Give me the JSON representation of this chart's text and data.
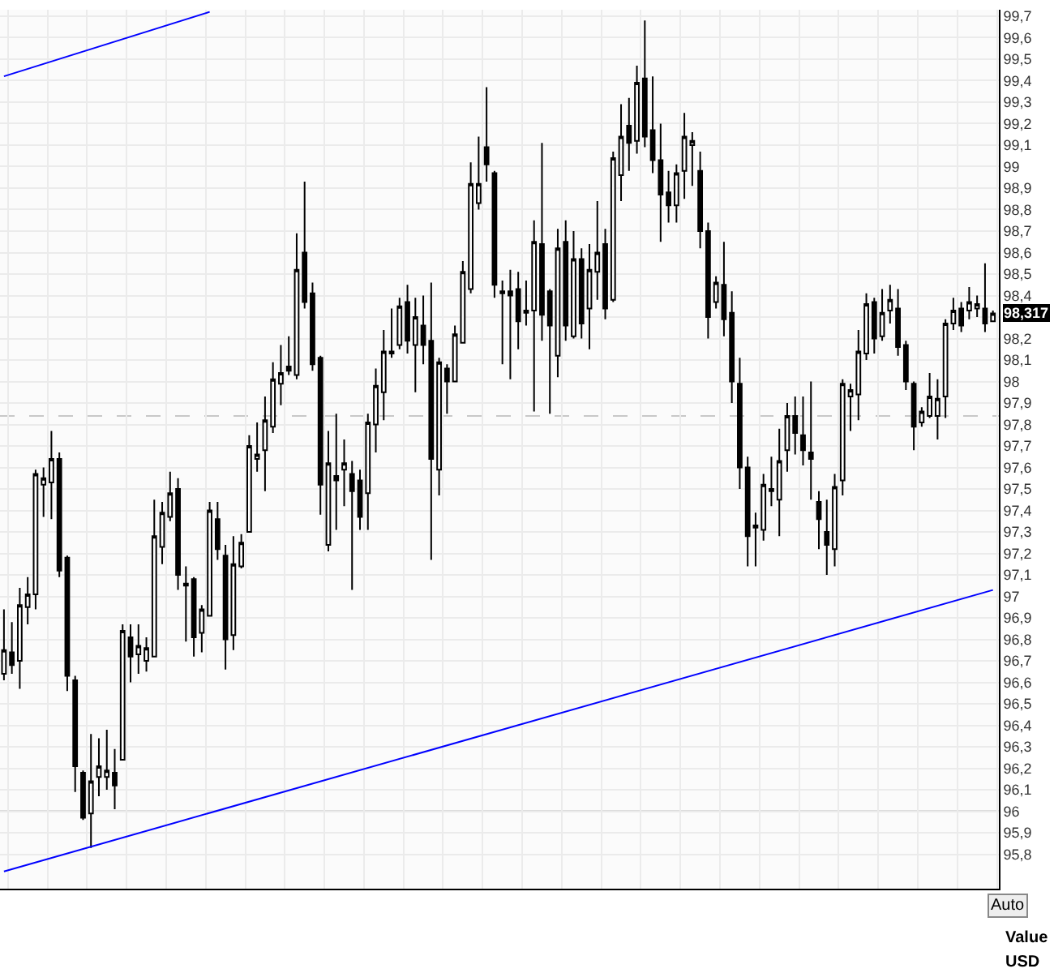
{
  "chart_data": {
    "type": "candlestick",
    "categories": [
      null,
      null,
      null,
      null,
      null,
      null,
      null,
      null,
      null,
      null,
      null,
      null,
      null,
      null,
      null,
      null,
      null,
      null,
      null,
      null,
      null,
      null,
      null,
      null,
      null,
      null,
      null,
      null,
      null,
      null,
      null,
      null,
      null,
      null,
      null,
      null,
      null,
      null,
      null,
      null,
      null,
      null,
      null,
      null,
      null,
      null,
      null,
      null,
      null,
      null,
      null,
      null,
      null,
      null,
      null,
      null,
      null,
      null,
      null,
      null,
      null,
      null,
      null,
      null,
      null,
      null,
      null,
      null,
      null,
      null,
      null,
      null,
      null,
      null,
      null,
      null,
      null,
      null,
      null,
      null,
      null,
      null,
      null,
      null,
      null,
      null,
      null,
      null,
      null,
      null,
      null,
      null,
      null,
      null,
      null,
      null,
      null,
      null,
      null,
      null,
      null,
      null,
      null,
      null,
      null,
      null,
      null,
      null,
      null,
      null,
      null,
      null,
      null,
      null,
      null,
      null,
      null,
      null,
      null,
      null,
      null,
      null,
      null,
      null,
      null,
      null
    ],
    "ohlc": [
      [
        96.64,
        96.94,
        96.61,
        96.75
      ],
      [
        96.74,
        96.88,
        96.64,
        96.68
      ],
      [
        96.7,
        97.04,
        96.57,
        96.96
      ],
      [
        96.95,
        97.09,
        96.87,
        97.01
      ],
      [
        97.01,
        97.59,
        96.94,
        97.57
      ],
      [
        97.52,
        97.6,
        97.37,
        97.55
      ],
      [
        97.53,
        97.77,
        97.36,
        97.64
      ],
      [
        97.64,
        97.67,
        97.09,
        97.12
      ],
      [
        97.18,
        97.19,
        96.56,
        96.63
      ],
      [
        96.61,
        96.63,
        96.09,
        96.21
      ],
      [
        96.18,
        96.19,
        95.96,
        95.97
      ],
      [
        95.99,
        96.36,
        95.83,
        96.14
      ],
      [
        96.16,
        96.34,
        96.07,
        96.21
      ],
      [
        96.16,
        96.38,
        96.1,
        96.19
      ],
      [
        96.18,
        96.29,
        96.01,
        96.12
      ],
      [
        96.24,
        96.87,
        96.24,
        96.84
      ],
      [
        96.81,
        96.87,
        96.6,
        96.72
      ],
      [
        96.73,
        96.87,
        96.64,
        96.77
      ],
      [
        96.7,
        96.81,
        96.65,
        96.76
      ],
      [
        96.72,
        97.45,
        96.72,
        97.28
      ],
      [
        97.23,
        97.44,
        97.15,
        97.39
      ],
      [
        97.37,
        97.58,
        97.35,
        97.48
      ],
      [
        97.5,
        97.55,
        97.03,
        97.1
      ],
      [
        97.06,
        97.14,
        96.79,
        97.05
      ],
      [
        97.08,
        97.09,
        96.72,
        96.81
      ],
      [
        96.83,
        96.96,
        96.74,
        96.94
      ],
      [
        96.91,
        97.44,
        96.91,
        97.4
      ],
      [
        97.36,
        97.44,
        97.17,
        97.22
      ],
      [
        97.19,
        97.24,
        96.66,
        96.8
      ],
      [
        96.82,
        97.28,
        96.75,
        97.15
      ],
      [
        97.14,
        97.29,
        97.13,
        97.25
      ],
      [
        97.3,
        97.75,
        97.3,
        97.7
      ],
      [
        97.64,
        97.81,
        97.58,
        97.66
      ],
      [
        97.68,
        97.93,
        97.49,
        97.82
      ],
      [
        97.79,
        98.09,
        97.76,
        98.01
      ],
      [
        97.99,
        98.17,
        97.89,
        98.04
      ],
      [
        98.07,
        98.21,
        98.03,
        98.05
      ],
      [
        98.03,
        98.69,
        98.01,
        98.52
      ],
      [
        98.6,
        98.93,
        98.34,
        98.37
      ],
      [
        98.41,
        98.46,
        98.05,
        98.08
      ],
      [
        98.11,
        98.12,
        97.38,
        97.52
      ],
      [
        97.24,
        97.77,
        97.21,
        97.62
      ],
      [
        97.56,
        97.85,
        97.31,
        97.54
      ],
      [
        97.59,
        97.73,
        97.42,
        97.62
      ],
      [
        97.57,
        97.63,
        97.03,
        97.49
      ],
      [
        97.54,
        97.59,
        97.31,
        97.37
      ],
      [
        97.48,
        97.85,
        97.31,
        97.81
      ],
      [
        97.8,
        98.06,
        97.67,
        97.98
      ],
      [
        97.95,
        98.24,
        97.82,
        98.14
      ],
      [
        98.13,
        98.34,
        98.11,
        98.14
      ],
      [
        98.17,
        98.39,
        98.15,
        98.35
      ],
      [
        98.37,
        98.45,
        98.13,
        98.19
      ],
      [
        98.17,
        98.39,
        97.95,
        98.3
      ],
      [
        98.26,
        98.4,
        98.08,
        98.17
      ],
      [
        98.19,
        98.46,
        97.17,
        97.64
      ],
      [
        97.59,
        98.11,
        97.47,
        98.09
      ],
      [
        98.06,
        98.08,
        97.85,
        98.0
      ],
      [
        98.0,
        98.26,
        98.0,
        98.22
      ],
      [
        98.18,
        98.56,
        98.18,
        98.51
      ],
      [
        98.43,
        99.02,
        98.41,
        98.92
      ],
      [
        98.83,
        99.14,
        98.8,
        98.92
      ],
      [
        99.09,
        99.37,
        98.93,
        99.01
      ],
      [
        98.97,
        98.98,
        98.39,
        98.45
      ],
      [
        98.41,
        98.47,
        98.08,
        98.42
      ],
      [
        98.42,
        98.52,
        98.01,
        98.4
      ],
      [
        98.43,
        98.51,
        98.15,
        98.28
      ],
      [
        98.33,
        98.47,
        98.26,
        98.32
      ],
      [
        98.33,
        98.75,
        97.86,
        98.65
      ],
      [
        98.64,
        99.11,
        98.19,
        98.31
      ],
      [
        98.42,
        98.43,
        97.85,
        98.26
      ],
      [
        98.12,
        98.71,
        98.02,
        98.62
      ],
      [
        98.65,
        98.75,
        98.19,
        98.26
      ],
      [
        98.21,
        98.7,
        98.2,
        98.57
      ],
      [
        98.57,
        98.62,
        98.2,
        98.27
      ],
      [
        98.34,
        98.64,
        98.15,
        98.52
      ],
      [
        98.51,
        98.84,
        98.38,
        98.6
      ],
      [
        98.64,
        98.71,
        98.29,
        98.34
      ],
      [
        98.38,
        99.07,
        98.37,
        99.04
      ],
      [
        98.96,
        99.29,
        98.84,
        99.14
      ],
      [
        99.19,
        99.32,
        98.98,
        99.11
      ],
      [
        99.12,
        99.47,
        99.06,
        99.39
      ],
      [
        99.41,
        99.68,
        99.09,
        99.14
      ],
      [
        99.17,
        99.42,
        98.97,
        99.03
      ],
      [
        99.03,
        99.2,
        98.65,
        98.87
      ],
      [
        98.88,
        98.98,
        98.74,
        98.82
      ],
      [
        98.82,
        99.01,
        98.74,
        98.97
      ],
      [
        98.98,
        99.25,
        98.85,
        99.14
      ],
      [
        99.1,
        99.16,
        98.91,
        99.12
      ],
      [
        98.98,
        99.07,
        98.62,
        98.7
      ],
      [
        98.7,
        98.74,
        98.2,
        98.3
      ],
      [
        98.37,
        98.49,
        98.34,
        98.46
      ],
      [
        98.45,
        98.65,
        98.21,
        98.29
      ],
      [
        98.32,
        98.42,
        97.9,
        98.0
      ],
      [
        97.99,
        98.11,
        97.5,
        97.6
      ],
      [
        97.6,
        97.65,
        97.14,
        97.28
      ],
      [
        97.33,
        97.39,
        97.14,
        97.32
      ],
      [
        97.31,
        97.57,
        97.26,
        97.52
      ],
      [
        97.49,
        97.65,
        97.42,
        97.5
      ],
      [
        97.45,
        97.78,
        97.28,
        97.63
      ],
      [
        97.68,
        97.9,
        97.58,
        97.84
      ],
      [
        97.84,
        97.93,
        97.66,
        97.76
      ],
      [
        97.75,
        97.93,
        97.61,
        97.68
      ],
      [
        97.67,
        98.0,
        97.45,
        97.64
      ],
      [
        97.44,
        97.49,
        97.22,
        97.36
      ],
      [
        97.3,
        97.45,
        97.1,
        97.24
      ],
      [
        97.22,
        97.57,
        97.14,
        97.51
      ],
      [
        97.54,
        98.01,
        97.47,
        97.99
      ],
      [
        97.93,
        97.99,
        97.77,
        97.96
      ],
      [
        97.94,
        98.24,
        97.82,
        98.14
      ],
      [
        98.13,
        98.41,
        98.1,
        98.36
      ],
      [
        98.37,
        98.39,
        98.13,
        98.2
      ],
      [
        98.21,
        98.43,
        98.19,
        98.32
      ],
      [
        98.33,
        98.45,
        98.27,
        98.38
      ],
      [
        98.34,
        98.43,
        98.12,
        98.16
      ],
      [
        98.17,
        98.19,
        97.96,
        98.0
      ],
      [
        97.99,
        98.0,
        97.68,
        97.79
      ],
      [
        97.81,
        97.88,
        97.79,
        97.86
      ],
      [
        97.84,
        98.04,
        97.83,
        97.93
      ],
      [
        97.84,
        98.01,
        97.73,
        97.92
      ],
      [
        97.93,
        98.29,
        97.83,
        98.27
      ],
      [
        98.27,
        98.39,
        98.24,
        98.33
      ],
      [
        98.34,
        98.37,
        98.23,
        98.26
      ],
      [
        98.33,
        98.44,
        98.29,
        98.37
      ],
      [
        98.34,
        98.4,
        98.3,
        98.36
      ],
      [
        98.34,
        98.55,
        98.23,
        98.27
      ],
      [
        98.28,
        98.33,
        98.28,
        98.317
      ]
    ],
    "series": [
      {
        "type": "line",
        "color": "#0000ff",
        "values": [
          99.42,
          null,
          null,
          null,
          null,
          null,
          null,
          null,
          null,
          null,
          null,
          null,
          null,
          null,
          null,
          null,
          null,
          null,
          null,
          null,
          null,
          null,
          null,
          null,
          null,
          null,
          99.72,
          null,
          null,
          null,
          null,
          null,
          null,
          null,
          null,
          null,
          null,
          null,
          null,
          null,
          null,
          null,
          null,
          null,
          null,
          null,
          null,
          null,
          null,
          null,
          null,
          null,
          null,
          null,
          null,
          null,
          null,
          null,
          null,
          null,
          null,
          null,
          null,
          null,
          null,
          null,
          null,
          null,
          null,
          null,
          null,
          null,
          null,
          null,
          null,
          null,
          null,
          null,
          null,
          null,
          null,
          null,
          null,
          null,
          null,
          null,
          null,
          null,
          null,
          null,
          null,
          null,
          null,
          null,
          null,
          null,
          null,
          null,
          null,
          null,
          null,
          null,
          null,
          null,
          null,
          null,
          null,
          null,
          null,
          null,
          null,
          null,
          null,
          null,
          null,
          null,
          null,
          null,
          null,
          null,
          null,
          null,
          null,
          null,
          null,
          null
        ]
      },
      {
        "type": "line",
        "color": "#0000ff",
        "values": [
          95.72,
          null,
          null,
          null,
          null,
          null,
          null,
          null,
          null,
          null,
          null,
          null,
          null,
          null,
          null,
          null,
          null,
          null,
          null,
          null,
          null,
          null,
          null,
          null,
          null,
          null,
          null,
          null,
          null,
          null,
          null,
          null,
          null,
          null,
          null,
          null,
          null,
          null,
          null,
          null,
          null,
          null,
          null,
          null,
          null,
          null,
          null,
          null,
          null,
          null,
          null,
          null,
          null,
          null,
          null,
          null,
          null,
          null,
          null,
          null,
          null,
          null,
          null,
          null,
          null,
          null,
          null,
          null,
          null,
          null,
          null,
          null,
          null,
          null,
          null,
          null,
          null,
          null,
          null,
          null,
          null,
          null,
          null,
          null,
          null,
          null,
          null,
          null,
          null,
          null,
          null,
          null,
          null,
          null,
          null,
          null,
          null,
          null,
          null,
          null,
          null,
          null,
          null,
          null,
          null,
          null,
          null,
          null,
          null,
          null,
          null,
          null,
          null,
          null,
          null,
          null,
          null,
          null,
          null,
          null,
          null,
          null,
          null,
          null,
          null,
          97.03
        ]
      }
    ],
    "ylim": [
      95.64,
      99.73
    ],
    "yticks": [
      {
        "value": 95.8,
        "label": "95,8"
      },
      {
        "value": 95.9,
        "label": "95,9"
      },
      96,
      {
        "value": 96.1,
        "label": "96,1"
      },
      {
        "value": 96.2,
        "label": "96,2"
      },
      {
        "value": 96.3,
        "label": "96,3"
      },
      {
        "value": 96.4,
        "label": "96,4"
      },
      {
        "value": 96.5,
        "label": "96,5"
      },
      {
        "value": 96.6,
        "label": "96,6"
      },
      {
        "value": 96.7,
        "label": "96,7"
      },
      {
        "value": 96.8,
        "label": "96,8"
      },
      {
        "value": 96.9,
        "label": "96,9"
      },
      97,
      {
        "value": 97.1,
        "label": "97,1"
      },
      {
        "value": 97.2,
        "label": "97,2"
      },
      {
        "value": 97.3,
        "label": "97,3"
      },
      {
        "value": 97.4,
        "label": "97,4"
      },
      {
        "value": 97.5,
        "label": "97,5"
      },
      {
        "value": 97.6,
        "label": "97,6"
      },
      {
        "value": 97.7,
        "label": "97,7"
      },
      {
        "value": 97.8,
        "label": "97,8"
      },
      {
        "value": 97.9,
        "label": "97,9"
      },
      98,
      {
        "value": 98.1,
        "label": "98,1"
      },
      {
        "value": 98.2,
        "label": "98,2"
      },
      {
        "value": 98.3,
        "label": null
      },
      {
        "value": 98.4,
        "label": "98,4"
      },
      {
        "value": 98.5,
        "label": "98,5"
      },
      {
        "value": 98.6,
        "label": "98,6"
      },
      {
        "value": 98.7,
        "label": "98,7"
      },
      {
        "value": 98.8,
        "label": "98,8"
      },
      {
        "value": 98.9,
        "label": "98,9"
      },
      99,
      {
        "value": 99.1,
        "label": "99,1"
      },
      {
        "value": 99.2,
        "label": "99,2"
      },
      {
        "value": 99.3,
        "label": "99,3"
      },
      {
        "value": 99.4,
        "label": "99,4"
      },
      {
        "value": 99.5,
        "label": "99,5"
      },
      {
        "value": 99.6,
        "label": "99,6"
      },
      {
        "value": 99.7,
        "label": "99,7"
      }
    ],
    "grid": true,
    "tick_labels": "y",
    "ref_lines": [
      {
        "axis": "y",
        "value": 97.84,
        "color": "#c8c8c8",
        "line_style": "dashed"
      },
      {
        "axis": "y",
        "value": 96,
        "color": "#c0c0c0",
        "line_style": "solid"
      }
    ],
    "annotations": [
      {
        "text": "98,317",
        "y": 98.317
      },
      "Auto",
      "Value",
      "USD"
    ]
  }
}
